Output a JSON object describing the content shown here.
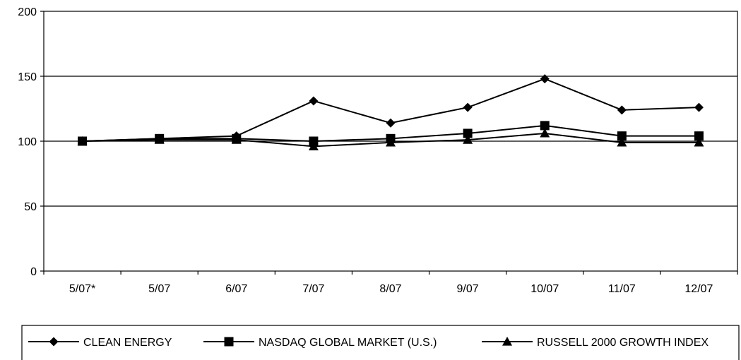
{
  "chart_data": {
    "type": "line",
    "title": "",
    "xlabel": "",
    "ylabel": "",
    "categories": [
      "5/07*",
      "5/07",
      "6/07",
      "7/07",
      "8/07",
      "9/07",
      "10/07",
      "11/07",
      "12/07"
    ],
    "ylim": [
      0,
      200
    ],
    "yticks": [
      0,
      50,
      100,
      150,
      200
    ],
    "grid": "horizontal",
    "legend_position": "bottom",
    "series": [
      {
        "name": "CLEAN ENERGY",
        "marker": "diamond",
        "values": [
          100,
          102,
          104,
          131,
          114,
          126,
          148,
          124,
          126
        ]
      },
      {
        "name": "NASDAQ GLOBAL MARKET (U.S.)",
        "marker": "square",
        "values": [
          100,
          102,
          102,
          100,
          102,
          106,
          112,
          104,
          104
        ]
      },
      {
        "name": "RUSSELL 2000 GROWTH INDEX",
        "marker": "triangle",
        "values": [
          100,
          101,
          101,
          96,
          99,
          101,
          106,
          99,
          99
        ]
      }
    ],
    "colors": {
      "line": "#000000",
      "grid": "#000000",
      "background": "#ffffff"
    }
  }
}
